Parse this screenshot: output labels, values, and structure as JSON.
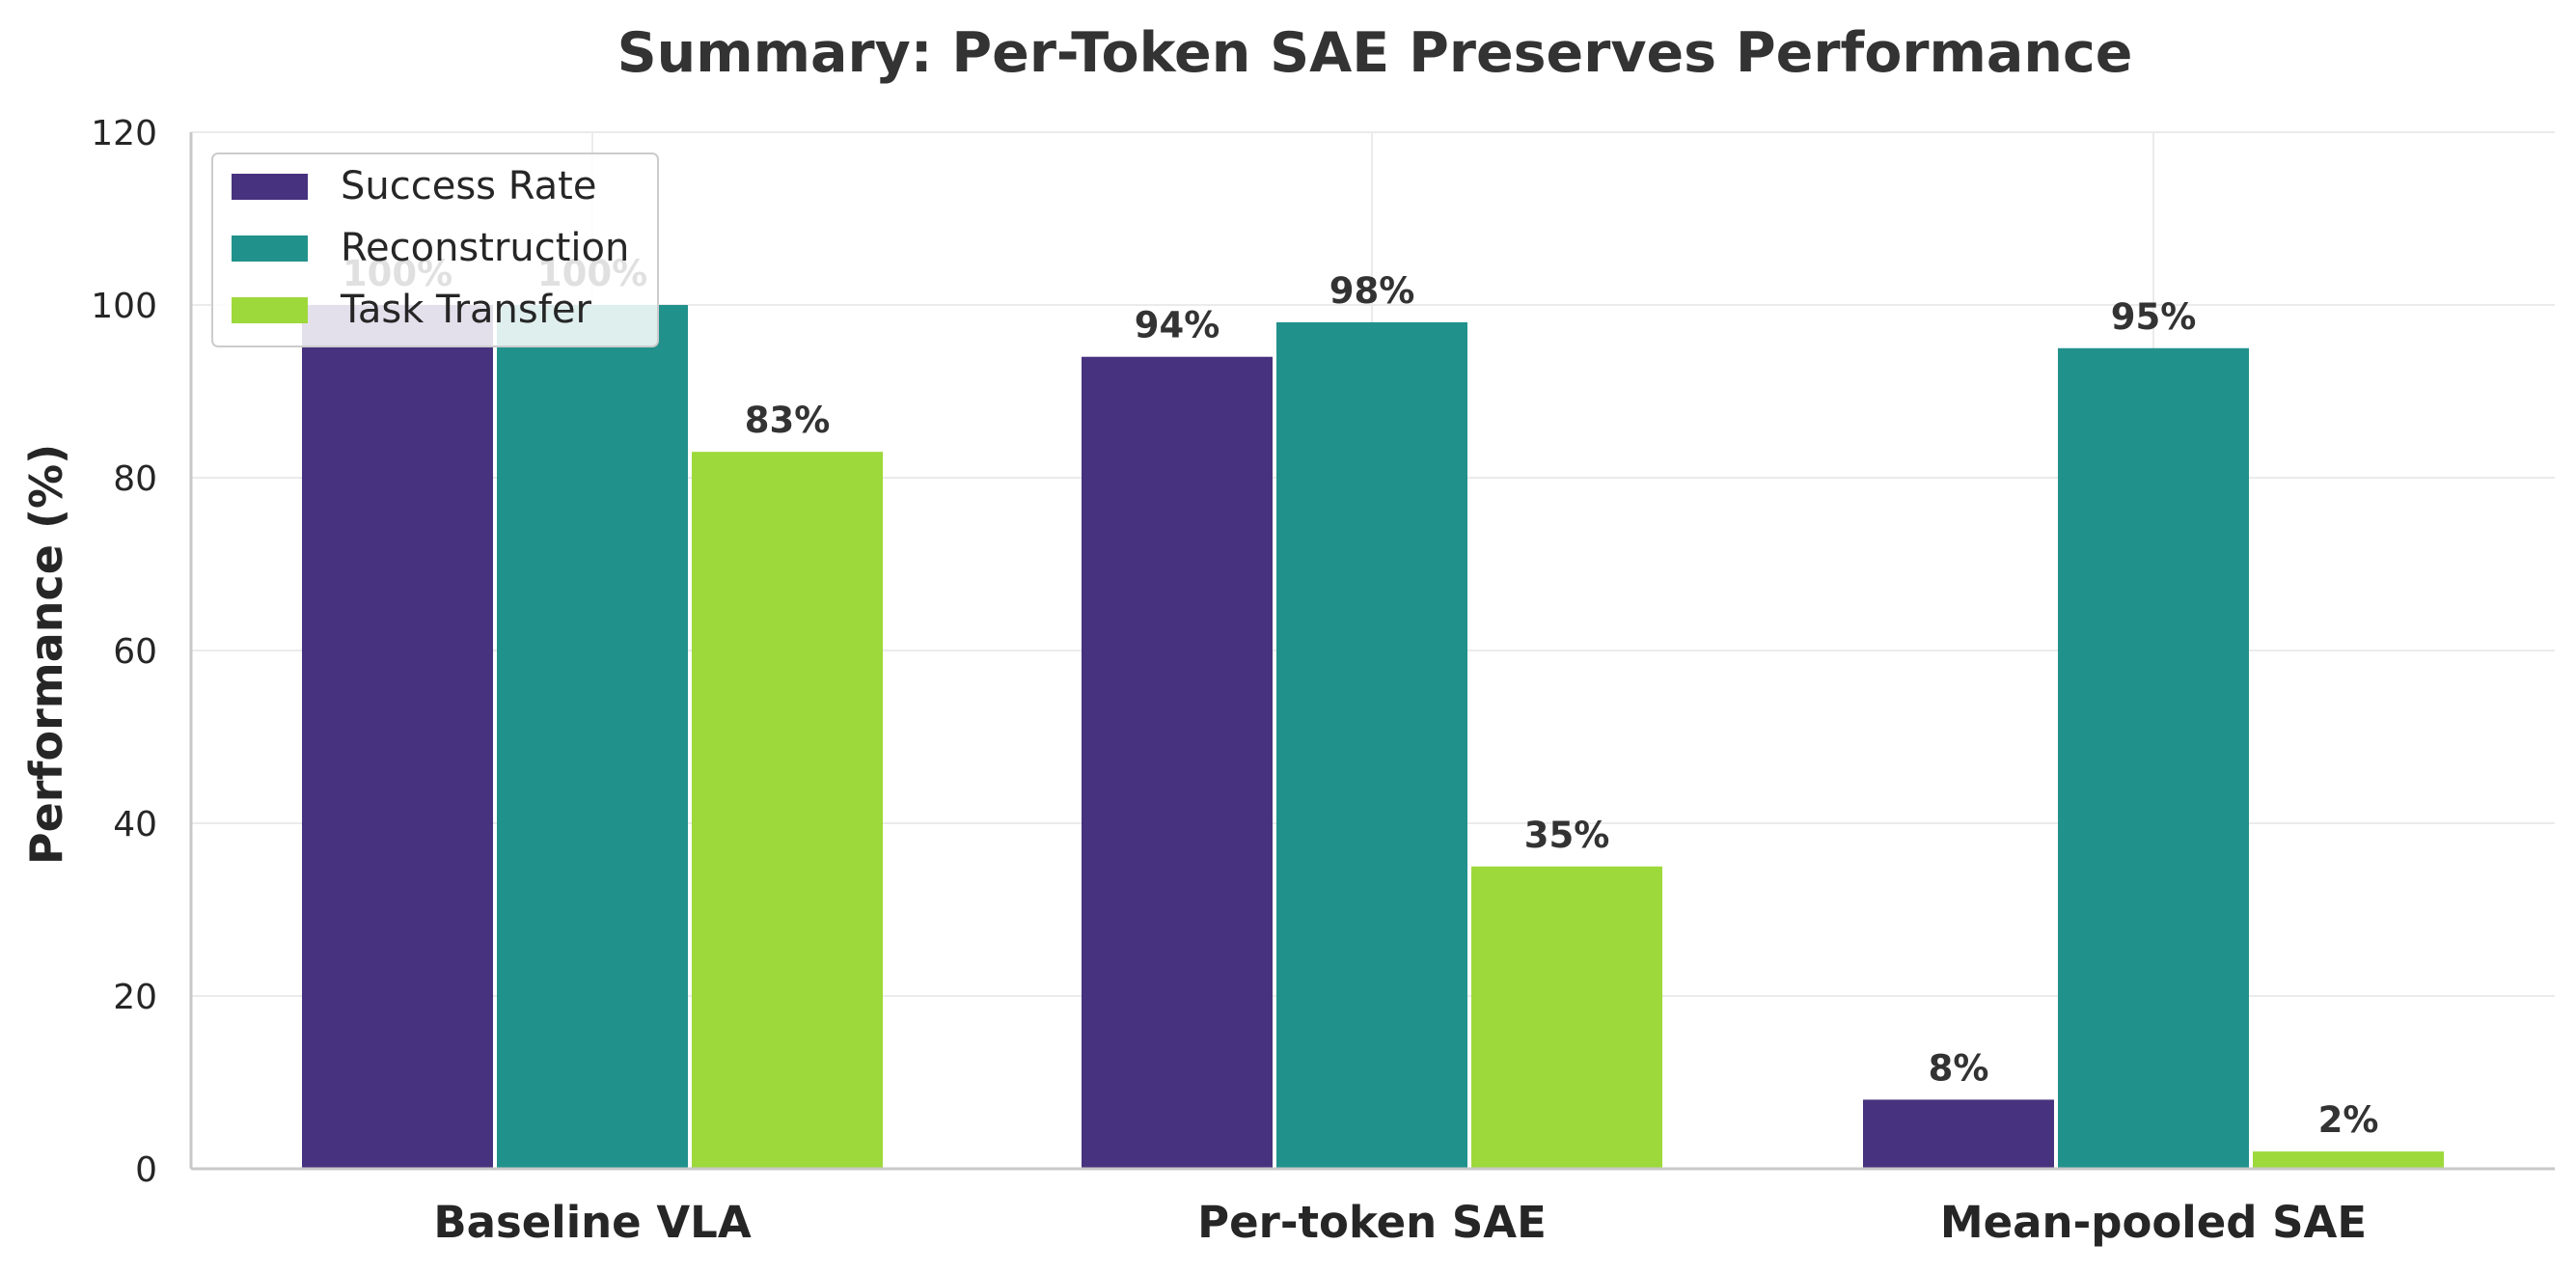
{
  "chart_data": {
    "type": "bar",
    "title": "Summary: Per-Token SAE Preserves Performance",
    "xlabel": "",
    "ylabel": "Performance (%)",
    "ylim": [
      0,
      120
    ],
    "yticks": [
      0,
      20,
      40,
      60,
      80,
      100,
      120
    ],
    "ytick_labels": [
      "0",
      "20",
      "40",
      "60",
      "80",
      "100",
      "120"
    ],
    "grid": true,
    "legend_position": "top-left",
    "categories": [
      "Baseline VLA",
      "Per-token SAE",
      "Mean-pooled SAE"
    ],
    "series": [
      {
        "name": "Success Rate",
        "color": "#46327e",
        "values": [
          100,
          94,
          8
        ],
        "labels": [
          "100%",
          "94%",
          "8%"
        ]
      },
      {
        "name": "Reconstruction",
        "color": "#21918c",
        "values": [
          100,
          98,
          95
        ],
        "labels": [
          "100%",
          "98%",
          "95%"
        ]
      },
      {
        "name": "Task Transfer",
        "color": "#9dd93b",
        "values": [
          83,
          35,
          2
        ],
        "labels": [
          "83%",
          "35%",
          "2%"
        ]
      }
    ]
  }
}
